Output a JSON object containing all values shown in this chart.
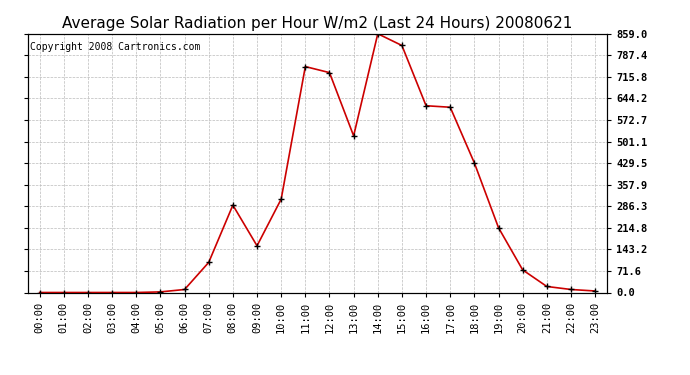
{
  "title": "Average Solar Radiation per Hour W/m2 (Last 24 Hours) 20080621",
  "copyright": "Copyright 2008 Cartronics.com",
  "hours": [
    "00:00",
    "01:00",
    "02:00",
    "03:00",
    "04:00",
    "05:00",
    "06:00",
    "07:00",
    "08:00",
    "09:00",
    "10:00",
    "11:00",
    "12:00",
    "13:00",
    "14:00",
    "15:00",
    "16:00",
    "17:00",
    "18:00",
    "19:00",
    "20:00",
    "21:00",
    "22:00",
    "23:00"
  ],
  "values": [
    0,
    0,
    0,
    0,
    0,
    2,
    10,
    100,
    290,
    155,
    310,
    750,
    730,
    520,
    859,
    820,
    620,
    615,
    430,
    215,
    75,
    20,
    10,
    5
  ],
  "line_color": "#cc0000",
  "marker": "+",
  "marker_color": "#000000",
  "bg_color": "#ffffff",
  "grid_color": "#bbbbbb",
  "ylim": [
    0,
    859.0
  ],
  "yticks": [
    0.0,
    71.6,
    143.2,
    214.8,
    286.3,
    357.9,
    429.5,
    501.1,
    572.7,
    644.2,
    715.8,
    787.4,
    859.0
  ],
  "title_fontsize": 11,
  "copyright_fontsize": 7,
  "tick_fontsize": 7.5
}
